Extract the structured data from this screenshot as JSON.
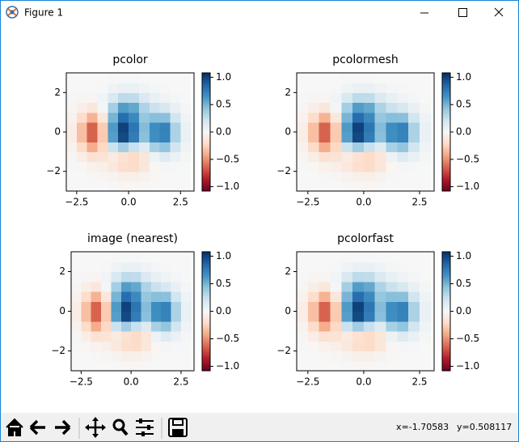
{
  "window": {
    "title": "Figure 1"
  },
  "chart_data": [
    {
      "type": "heatmap",
      "title": "pcolor",
      "cmap": "RdBu",
      "x": [
        -3,
        -2.5,
        -2,
        -1.5,
        -1,
        -0.5,
        0,
        0.5,
        1,
        1.5,
        2,
        2.5,
        3
      ],
      "y": [
        -3,
        -2.5,
        -2,
        -1.5,
        -1,
        -0.5,
        0,
        0.5,
        1,
        1.5,
        2,
        2.5,
        3
      ],
      "z": [
        [
          0,
          0,
          -0.001,
          -0.002,
          -0.006,
          -0.01,
          -0.01,
          -0.006,
          -0.002,
          0,
          0,
          0
        ],
        [
          -0.001,
          -0.003,
          -0.008,
          -0.017,
          -0.037,
          -0.061,
          -0.063,
          -0.038,
          -0.011,
          0.002,
          0.002,
          0
        ],
        [
          -0.004,
          -0.018,
          -0.044,
          -0.067,
          -0.113,
          -0.186,
          -0.197,
          -0.12,
          -0.019,
          0.025,
          0.015,
          0.004
        ],
        [
          -0.017,
          -0.076,
          -0.162,
          -0.149,
          -0.098,
          -0.163,
          -0.212,
          -0.13,
          0.065,
          0.143,
          0.074,
          0.017
        ],
        [
          -0.046,
          -0.202,
          -0.399,
          -0.221,
          0.232,
          0.376,
          0.243,
          0.143,
          0.359,
          0.43,
          0.206,
          0.046
        ],
        [
          -0.076,
          -0.33,
          -0.639,
          -0.284,
          0.6,
          0.978,
          0.759,
          0.453,
          0.671,
          0.726,
          0.342,
          0.077
        ],
        [
          -0.076,
          -0.33,
          -0.638,
          -0.278,
          0.617,
          1.006,
          0.787,
          0.47,
          0.678,
          0.728,
          0.342,
          0.077
        ],
        [
          -0.046,
          -0.199,
          -0.376,
          -0.12,
          0.506,
          0.828,
          0.695,
          0.417,
          0.46,
          0.452,
          0.209,
          0.047
        ],
        [
          -0.017,
          -0.071,
          -0.123,
          0.023,
          0.369,
          0.606,
          0.557,
          0.336,
          0.236,
          0.181,
          0.079,
          0.017
        ],
        [
          -0.004,
          -0.015,
          -0.02,
          0.039,
          0.173,
          0.285,
          0.274,
          0.166,
          0.086,
          0.048,
          0.019,
          0.004
        ],
        [
          -0.001,
          -0.002,
          -0.001,
          0.013,
          0.045,
          0.074,
          0.073,
          0.044,
          0.02,
          0.008,
          0.003,
          0.001
        ],
        [
          0,
          0,
          0,
          0.002,
          0.007,
          0.011,
          0.011,
          0.006,
          0.003,
          0.001,
          0,
          0
        ]
      ],
      "clim": [
        -1.08,
        1.08
      ],
      "xlim": [
        -3,
        3.15
      ],
      "ylim": [
        -3,
        3
      ],
      "xticks": [
        {
          "value": -2.5,
          "label": "−2.5"
        },
        {
          "value": 0,
          "label": "0.0"
        },
        2.5
      ],
      "yticks": [
        {
          "value": -2,
          "label": "−2"
        },
        0,
        2
      ],
      "cticks": [
        {
          "value": -1,
          "label": "−1.0"
        },
        {
          "value": -0.5,
          "label": "−0.5"
        },
        {
          "value": 0,
          "label": "0.0"
        },
        0.5,
        {
          "value": 1,
          "label": "1.0"
        }
      ]
    },
    {
      "type": "heatmap",
      "title": "pcolormesh",
      "cmap": "RdBu",
      "x": [
        -3,
        -2.5,
        -2,
        -1.5,
        -1,
        -0.5,
        0,
        0.5,
        1,
        1.5,
        2,
        2.5,
        3
      ],
      "y": [
        -3,
        -2.5,
        -2,
        -1.5,
        -1,
        -0.5,
        0,
        0.5,
        1,
        1.5,
        2,
        2.5,
        3
      ],
      "z": [
        [
          0,
          0,
          -0.001,
          -0.002,
          -0.006,
          -0.01,
          -0.01,
          -0.006,
          -0.002,
          0,
          0,
          0
        ],
        [
          -0.001,
          -0.003,
          -0.008,
          -0.017,
          -0.037,
          -0.061,
          -0.063,
          -0.038,
          -0.011,
          0.002,
          0.002,
          0
        ],
        [
          -0.004,
          -0.018,
          -0.044,
          -0.067,
          -0.113,
          -0.186,
          -0.197,
          -0.12,
          -0.019,
          0.025,
          0.015,
          0.004
        ],
        [
          -0.017,
          -0.076,
          -0.162,
          -0.149,
          -0.098,
          -0.163,
          -0.212,
          -0.13,
          0.065,
          0.143,
          0.074,
          0.017
        ],
        [
          -0.046,
          -0.202,
          -0.399,
          -0.221,
          0.232,
          0.376,
          0.243,
          0.143,
          0.359,
          0.43,
          0.206,
          0.046
        ],
        [
          -0.076,
          -0.33,
          -0.639,
          -0.284,
          0.6,
          0.978,
          0.759,
          0.453,
          0.671,
          0.726,
          0.342,
          0.077
        ],
        [
          -0.076,
          -0.33,
          -0.638,
          -0.278,
          0.617,
          1.006,
          0.787,
          0.47,
          0.678,
          0.728,
          0.342,
          0.077
        ],
        [
          -0.046,
          -0.199,
          -0.376,
          -0.12,
          0.506,
          0.828,
          0.695,
          0.417,
          0.46,
          0.452,
          0.209,
          0.047
        ],
        [
          -0.017,
          -0.071,
          -0.123,
          0.023,
          0.369,
          0.606,
          0.557,
          0.336,
          0.236,
          0.181,
          0.079,
          0.017
        ],
        [
          -0.004,
          -0.015,
          -0.02,
          0.039,
          0.173,
          0.285,
          0.274,
          0.166,
          0.086,
          0.048,
          0.019,
          0.004
        ],
        [
          -0.001,
          -0.002,
          -0.001,
          0.013,
          0.045,
          0.074,
          0.073,
          0.044,
          0.02,
          0.008,
          0.003,
          0.001
        ],
        [
          0,
          0,
          0,
          0.002,
          0.007,
          0.011,
          0.011,
          0.006,
          0.003,
          0.001,
          0,
          0
        ]
      ],
      "clim": [
        -1.08,
        1.08
      ],
      "xlim": [
        -3,
        3.15
      ],
      "ylim": [
        -3,
        3
      ],
      "xticks": [
        {
          "value": -2.5,
          "label": "−2.5"
        },
        {
          "value": 0,
          "label": "0.0"
        },
        2.5
      ],
      "yticks": [
        {
          "value": -2,
          "label": "−2"
        },
        0,
        2
      ],
      "cticks": [
        {
          "value": -1,
          "label": "−1.0"
        },
        {
          "value": -0.5,
          "label": "−0.5"
        },
        {
          "value": 0,
          "label": "0.0"
        },
        0.5,
        {
          "value": 1,
          "label": "1.0"
        }
      ]
    },
    {
      "type": "heatmap",
      "title": "image (nearest)",
      "cmap": "RdBu",
      "x": [
        -3,
        -2.5,
        -2,
        -1.5,
        -1,
        -0.5,
        0,
        0.5,
        1,
        1.5,
        2,
        2.5,
        3
      ],
      "y": [
        -3,
        -2.5,
        -2,
        -1.5,
        -1,
        -0.5,
        0,
        0.5,
        1,
        1.5,
        2,
        2.5,
        3
      ],
      "z": [
        [
          0,
          0,
          -0.001,
          -0.002,
          -0.006,
          -0.01,
          -0.01,
          -0.006,
          -0.002,
          0,
          0,
          0
        ],
        [
          -0.001,
          -0.003,
          -0.008,
          -0.017,
          -0.037,
          -0.061,
          -0.063,
          -0.038,
          -0.011,
          0.002,
          0.002,
          0
        ],
        [
          -0.004,
          -0.018,
          -0.044,
          -0.067,
          -0.113,
          -0.186,
          -0.197,
          -0.12,
          -0.019,
          0.025,
          0.015,
          0.004
        ],
        [
          -0.017,
          -0.076,
          -0.162,
          -0.149,
          -0.098,
          -0.163,
          -0.212,
          -0.13,
          0.065,
          0.143,
          0.074,
          0.017
        ],
        [
          -0.046,
          -0.202,
          -0.399,
          -0.221,
          0.232,
          0.376,
          0.243,
          0.143,
          0.359,
          0.43,
          0.206,
          0.046
        ],
        [
          -0.076,
          -0.33,
          -0.639,
          -0.284,
          0.6,
          0.978,
          0.759,
          0.453,
          0.671,
          0.726,
          0.342,
          0.077
        ],
        [
          -0.076,
          -0.33,
          -0.638,
          -0.278,
          0.617,
          1.006,
          0.787,
          0.47,
          0.678,
          0.728,
          0.342,
          0.077
        ],
        [
          -0.046,
          -0.199,
          -0.376,
          -0.12,
          0.506,
          0.828,
          0.695,
          0.417,
          0.46,
          0.452,
          0.209,
          0.047
        ],
        [
          -0.017,
          -0.071,
          -0.123,
          0.023,
          0.369,
          0.606,
          0.557,
          0.336,
          0.236,
          0.181,
          0.079,
          0.017
        ],
        [
          -0.004,
          -0.015,
          -0.02,
          0.039,
          0.173,
          0.285,
          0.274,
          0.166,
          0.086,
          0.048,
          0.019,
          0.004
        ],
        [
          -0.001,
          -0.002,
          -0.001,
          0.013,
          0.045,
          0.074,
          0.073,
          0.044,
          0.02,
          0.008,
          0.003,
          0.001
        ],
        [
          0,
          0,
          0,
          0.002,
          0.007,
          0.011,
          0.011,
          0.006,
          0.003,
          0.001,
          0,
          0
        ]
      ],
      "clim": [
        -1.08,
        1.08
      ],
      "xlim": [
        -3,
        3.15
      ],
      "ylim": [
        -3,
        3
      ],
      "xticks": [
        {
          "value": -2.5,
          "label": "−2.5"
        },
        {
          "value": 0,
          "label": "0.0"
        },
        2.5
      ],
      "yticks": [
        {
          "value": -2,
          "label": "−2"
        },
        0,
        2
      ],
      "cticks": [
        {
          "value": -1,
          "label": "−1.0"
        },
        {
          "value": -0.5,
          "label": "−0.5"
        },
        {
          "value": 0,
          "label": "0.0"
        },
        0.5,
        {
          "value": 1,
          "label": "1.0"
        }
      ]
    },
    {
      "type": "heatmap",
      "title": "pcolorfast",
      "cmap": "RdBu",
      "x": [
        -3,
        -2.5,
        -2,
        -1.5,
        -1,
        -0.5,
        0,
        0.5,
        1,
        1.5,
        2,
        2.5,
        3
      ],
      "y": [
        -3,
        -2.5,
        -2,
        -1.5,
        -1,
        -0.5,
        0,
        0.5,
        1,
        1.5,
        2,
        2.5,
        3
      ],
      "z": [
        [
          0,
          0,
          -0.001,
          -0.002,
          -0.006,
          -0.01,
          -0.01,
          -0.006,
          -0.002,
          0,
          0,
          0
        ],
        [
          -0.001,
          -0.003,
          -0.008,
          -0.017,
          -0.037,
          -0.061,
          -0.063,
          -0.038,
          -0.011,
          0.002,
          0.002,
          0
        ],
        [
          -0.004,
          -0.018,
          -0.044,
          -0.067,
          -0.113,
          -0.186,
          -0.197,
          -0.12,
          -0.019,
          0.025,
          0.015,
          0.004
        ],
        [
          -0.017,
          -0.076,
          -0.162,
          -0.149,
          -0.098,
          -0.163,
          -0.212,
          -0.13,
          0.065,
          0.143,
          0.074,
          0.017
        ],
        [
          -0.046,
          -0.202,
          -0.399,
          -0.221,
          0.232,
          0.376,
          0.243,
          0.143,
          0.359,
          0.43,
          0.206,
          0.046
        ],
        [
          -0.076,
          -0.33,
          -0.639,
          -0.284,
          0.6,
          0.978,
          0.759,
          0.453,
          0.671,
          0.726,
          0.342,
          0.077
        ],
        [
          -0.076,
          -0.33,
          -0.638,
          -0.278,
          0.617,
          1.006,
          0.787,
          0.47,
          0.678,
          0.728,
          0.342,
          0.077
        ],
        [
          -0.046,
          -0.199,
          -0.376,
          -0.12,
          0.506,
          0.828,
          0.695,
          0.417,
          0.46,
          0.452,
          0.209,
          0.047
        ],
        [
          -0.017,
          -0.071,
          -0.123,
          0.023,
          0.369,
          0.606,
          0.557,
          0.336,
          0.236,
          0.181,
          0.079,
          0.017
        ],
        [
          -0.004,
          -0.015,
          -0.02,
          0.039,
          0.173,
          0.285,
          0.274,
          0.166,
          0.086,
          0.048,
          0.019,
          0.004
        ],
        [
          -0.001,
          -0.002,
          -0.001,
          0.013,
          0.045,
          0.074,
          0.073,
          0.044,
          0.02,
          0.008,
          0.003,
          0.001
        ],
        [
          0,
          0,
          0,
          0.002,
          0.007,
          0.011,
          0.011,
          0.006,
          0.003,
          0.001,
          0,
          0
        ]
      ],
      "clim": [
        -1.08,
        1.08
      ],
      "xlim": [
        -3,
        3.15
      ],
      "ylim": [
        -3,
        3
      ],
      "xticks": [
        {
          "value": -2.5,
          "label": "−2.5"
        },
        {
          "value": 0,
          "label": "0.0"
        },
        2.5
      ],
      "yticks": [
        {
          "value": -2,
          "label": "−2"
        },
        0,
        2
      ],
      "cticks": [
        {
          "value": -1,
          "label": "−1.0"
        },
        {
          "value": -0.5,
          "label": "−0.5"
        },
        {
          "value": 0,
          "label": "0.0"
        },
        0.5,
        {
          "value": 1,
          "label": "1.0"
        }
      ]
    }
  ],
  "status": {
    "x": "x=-1.70583",
    "y": "y=0.508117"
  }
}
